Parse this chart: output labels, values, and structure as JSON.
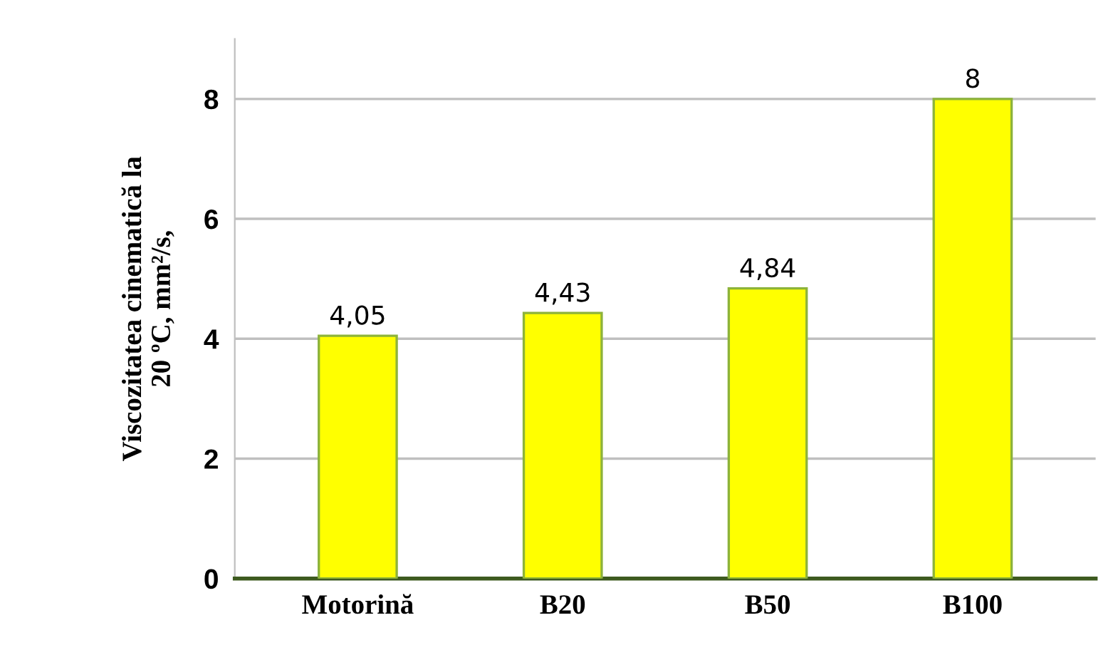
{
  "chart_data": {
    "type": "bar",
    "ylabel": "Viscozitatea cinematică la\n20 ºC, mm²/s,",
    "categories": [
      "Motorină",
      "B20",
      "B50",
      "B100"
    ],
    "values": [
      4.05,
      4.43,
      4.84,
      8
    ],
    "value_labels": [
      "4,05",
      "4,43",
      "4,84",
      "8"
    ],
    "color": "#ffff00",
    "ylim": [
      0,
      9
    ],
    "yticks": [
      0,
      2,
      4,
      6,
      8
    ],
    "grid": "y"
  }
}
